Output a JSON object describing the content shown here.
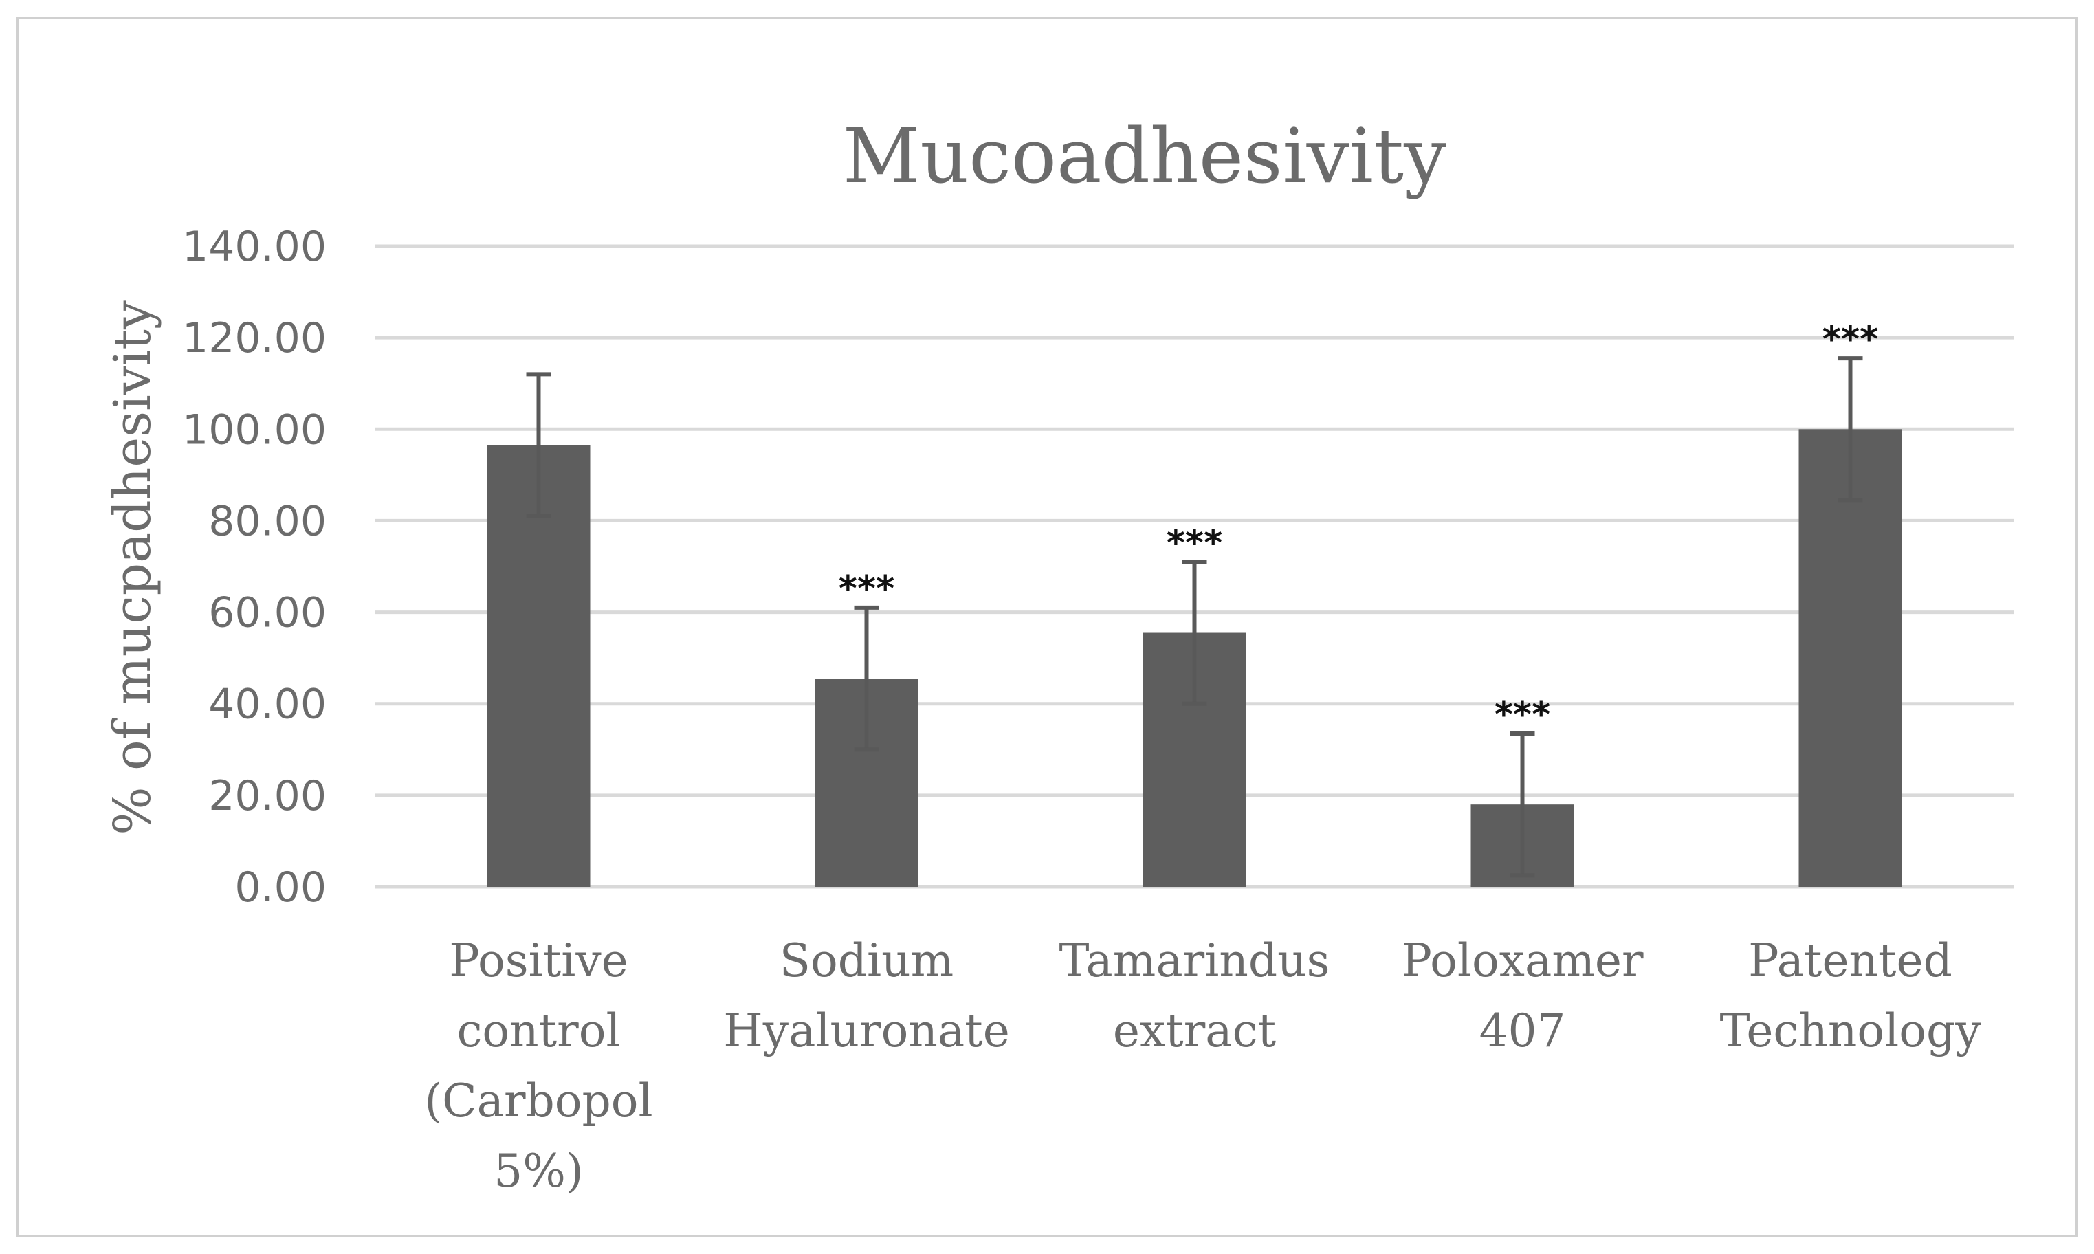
{
  "chart_data": {
    "type": "bar",
    "title": "Mucoadhesivity",
    "xlabel": "",
    "ylabel": "% of mucpadhesivity",
    "ylim": [
      0,
      140
    ],
    "ytick_values": [
      0,
      20,
      40,
      60,
      80,
      100,
      120,
      140
    ],
    "ytick_labels": [
      "0.00",
      "20.00",
      "40.00",
      "60.00",
      "80.00",
      "100.00",
      "120.00",
      "140.00"
    ],
    "grid": true,
    "categories": [
      [
        "Positive",
        "control",
        "(Carbopol",
        "5%)"
      ],
      [
        "Sodium",
        "Hyaluronate"
      ],
      [
        "Tamarindus",
        "extract"
      ],
      [
        "Poloxamer",
        "407"
      ],
      [
        "Patented",
        "Technology"
      ]
    ],
    "values": [
      96.5,
      45.5,
      55.5,
      18.0,
      100.0
    ],
    "errors": [
      15.5,
      15.5,
      15.5,
      15.5,
      15.5
    ],
    "significance": [
      "",
      "***",
      "***",
      "***",
      "***"
    ],
    "colors": {
      "bar": "#5e5e5e",
      "error": "#595959",
      "grid": "#d9d9d9",
      "frame": "#d0d0d0",
      "text": "#6b6b6b",
      "significance": "#111111"
    }
  }
}
